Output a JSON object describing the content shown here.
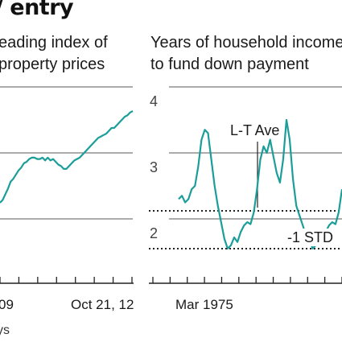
{
  "page": {
    "title_fragment": "/ entry",
    "left_subtitle_lines": [
      "eading index of",
      "property prices"
    ],
    "right_subtitle_lines": [
      "Years of household income",
      "to fund down payment"
    ],
    "footer_fragment": "ys"
  },
  "colors": {
    "line": "#1b9e99",
    "grid": "#7a7a7a",
    "text": "#1a1a1a"
  },
  "chart_data": [
    {
      "type": "line",
      "title": "eading index of property prices",
      "x_tick_labels": [
        "09",
        "Oct 21, 12"
      ],
      "y_tick_labels": [],
      "series": [
        {
          "x": [
            0,
            2,
            4,
            6,
            8,
            10,
            12,
            14,
            16,
            18,
            20,
            22,
            24,
            26,
            28,
            30,
            32,
            34,
            36,
            38,
            40,
            42,
            44,
            46,
            48,
            50,
            52,
            54,
            56,
            58,
            60,
            62,
            64,
            66,
            68,
            70,
            72,
            74,
            76,
            78,
            80,
            82,
            84,
            86,
            88,
            90,
            92,
            94,
            96,
            98,
            100
          ],
          "values": [
            30,
            32,
            36,
            40,
            45,
            47,
            50,
            53,
            55,
            58,
            59,
            61,
            62,
            62,
            61,
            61,
            62,
            60,
            62,
            60,
            61,
            59,
            57,
            56,
            54,
            54,
            56,
            58,
            60,
            61,
            62,
            64,
            66,
            68,
            70,
            72,
            74,
            76,
            77,
            78,
            79,
            81,
            83,
            83,
            85,
            87,
            89,
            91,
            92,
            94,
            95
          ]
        }
      ]
    },
    {
      "type": "line",
      "title": "Years of household income to fund down payment",
      "y_tick_labels": [
        "4",
        "3",
        "2"
      ],
      "x_tick_labels": [
        "Mar 1975"
      ],
      "ylim": [
        1.35,
        4.1
      ],
      "reference_lines": [
        {
          "label": "L-T Ave",
          "value": 2.3
        },
        {
          "label": "-1 STD",
          "value": 1.68
        }
      ],
      "series": [
        {
          "x": [
            0,
            2,
            4,
            6,
            8,
            10,
            12,
            14,
            16,
            18,
            20,
            22,
            24,
            26,
            28,
            30,
            32,
            34,
            36,
            38,
            40,
            42,
            44,
            46,
            48,
            50,
            52,
            54,
            56,
            58,
            60,
            62,
            64,
            66,
            68,
            70,
            72,
            74,
            76,
            78,
            80,
            82,
            84,
            86,
            88,
            90,
            92,
            94,
            96,
            98,
            100
          ],
          "values": [
            2.3,
            2.35,
            2.25,
            2.3,
            2.45,
            2.5,
            2.8,
            3.2,
            3.35,
            3.3,
            2.9,
            2.5,
            2.2,
            1.95,
            1.7,
            1.55,
            1.6,
            1.72,
            1.65,
            1.8,
            1.9,
            1.95,
            1.92,
            2.1,
            2.45,
            2.9,
            3.1,
            3.0,
            3.2,
            2.95,
            2.7,
            2.55,
            2.9,
            3.5,
            3.2,
            2.6,
            2.2,
            2.05,
            1.9,
            1.75,
            1.7,
            1.55,
            1.6,
            1.72,
            1.65,
            1.8,
            1.9,
            1.95,
            1.92,
            2.1,
            2.45
          ]
        }
      ]
    }
  ]
}
